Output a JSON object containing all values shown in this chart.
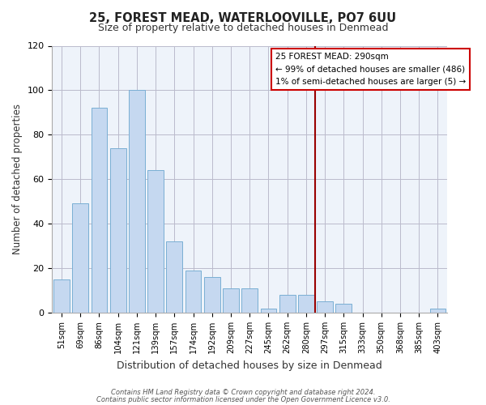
{
  "title": "25, FOREST MEAD, WATERLOOVILLE, PO7 6UU",
  "subtitle": "Size of property relative to detached houses in Denmead",
  "xlabel": "Distribution of detached houses by size in Denmead",
  "ylabel": "Number of detached properties",
  "bar_labels": [
    "51sqm",
    "69sqm",
    "86sqm",
    "104sqm",
    "121sqm",
    "139sqm",
    "157sqm",
    "174sqm",
    "192sqm",
    "209sqm",
    "227sqm",
    "245sqm",
    "262sqm",
    "280sqm",
    "297sqm",
    "315sqm",
    "333sqm",
    "350sqm",
    "368sqm",
    "385sqm",
    "403sqm"
  ],
  "bar_heights": [
    15,
    49,
    92,
    74,
    100,
    64,
    32,
    19,
    16,
    11,
    11,
    2,
    8,
    8,
    5,
    4,
    0,
    0,
    0,
    0,
    2
  ],
  "bar_color": "#c5d8f0",
  "bar_edge_color": "#7aafd4",
  "plot_bg_color": "#eef3fa",
  "ylim": [
    0,
    120
  ],
  "yticks": [
    0,
    20,
    40,
    60,
    80,
    100,
    120
  ],
  "vline_x": 14,
  "vline_color": "#990000",
  "legend_title": "25 FOREST MEAD: 290sqm",
  "legend_line1": "← 99% of detached houses are smaller (486)",
  "legend_line2": "1% of semi-detached houses are larger (5) →",
  "legend_box_color": "#ffffff",
  "legend_box_edge": "#cc0000",
  "footnote1": "Contains HM Land Registry data © Crown copyright and database right 2024.",
  "footnote2": "Contains public sector information licensed under the Open Government Licence v3.0.",
  "background_color": "#ffffff",
  "grid_color": "#bbbbcc"
}
